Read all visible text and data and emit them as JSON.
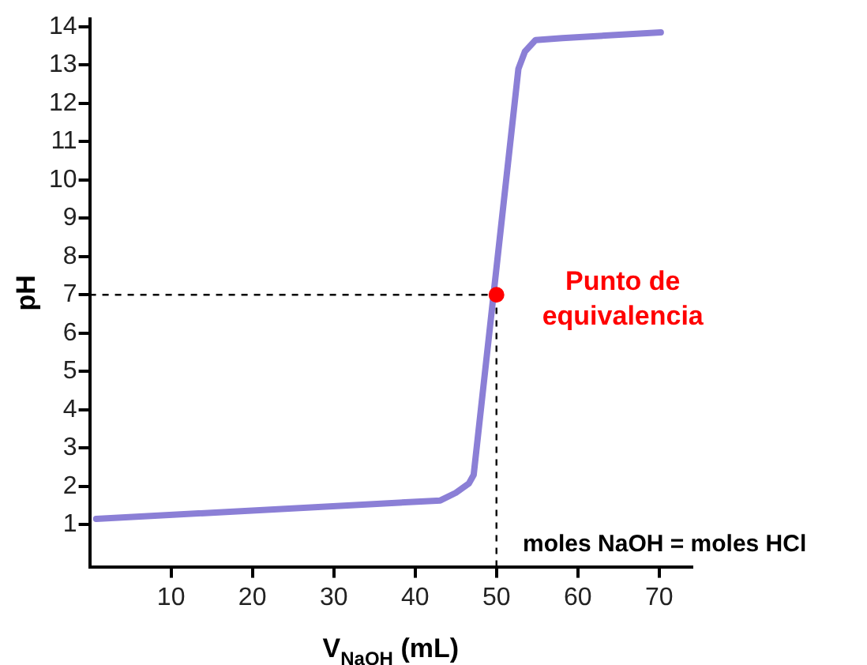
{
  "chart_data": {
    "type": "line",
    "xlabel": "V$_{NaOH}$ (mL)",
    "ylabel": "pH",
    "series": [
      {
        "color": "#8b7fd6",
        "x": [
          0.8,
          43.1,
          45,
          46.6,
          47.2,
          52.7,
          53.5,
          54.8,
          58.1,
          70.2
        ],
        "values": [
          1.15,
          1.63,
          1.83,
          2.07,
          2.3,
          12.9,
          13.35,
          13.65,
          13.7,
          13.85
        ]
      },
      {
        "type": "scatter",
        "color": "#ff0000",
        "x": [
          50
        ],
        "values": [
          7
        ]
      }
    ],
    "xlim": [
      0,
      74
    ],
    "xticks": [
      10,
      20,
      30,
      40,
      50,
      60,
      70
    ],
    "ylim": [
      -0.1,
      14.2
    ],
    "yticks": [
      1,
      2,
      3,
      4,
      5,
      6,
      7,
      8,
      9,
      10,
      11,
      12,
      13,
      14
    ],
    "ref_lines": [
      {
        "axis": "y",
        "value": 7,
        "label": null,
        "line_style": "dashed",
        "color": "#000000"
      },
      {
        "axis": "x",
        "value": 50,
        "label": null,
        "line_style": "dashed",
        "color": "#000000"
      }
    ],
    "annotations": [
      {
        "text": "Punto de\nequivalencia",
        "x": 50,
        "y": 7
      },
      "moles NaOH = moles HCl"
    ],
    "grid": false,
    "legend": false,
    "line_style": "solid"
  }
}
